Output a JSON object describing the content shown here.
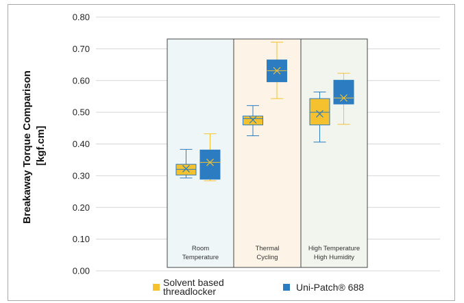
{
  "chart_data": {
    "type": "box",
    "ylabel": [
      "Breakaway Torque Comparison",
      "[kgf.cm]"
    ],
    "ylim": [
      0,
      0.8
    ],
    "ytick_labels": [
      "0.00",
      "0.10",
      "0.20",
      "0.30",
      "0.40",
      "0.50",
      "0.60",
      "0.70",
      "0.80"
    ],
    "yticks": [
      0,
      0.1,
      0.2,
      0.3,
      0.4,
      0.5,
      0.6,
      0.7,
      0.8
    ],
    "categories": [
      {
        "lines": [
          "Room",
          "Temperature"
        ],
        "bg": "#eef6f8"
      },
      {
        "lines": [
          "Thermal",
          "Cycling"
        ],
        "bg": "#fdf3e7"
      },
      {
        "lines": [
          "High Temperature",
          "High Humidity"
        ],
        "bg": "#f1f5ee"
      }
    ],
    "series": [
      {
        "name_lines": [
          "Solvent based",
          "threadlocker"
        ],
        "color": "#f5c12e",
        "stroke": "#f5c12e",
        "boxes": [
          {
            "min": 0.293,
            "q1": 0.302,
            "median": 0.32,
            "q3": 0.336,
            "max": 0.383,
            "mean": 0.322
          },
          {
            "min": 0.426,
            "q1": 0.46,
            "median": 0.48,
            "q3": 0.488,
            "max": 0.521,
            "mean": 0.476
          },
          {
            "min": 0.406,
            "q1": 0.46,
            "median": 0.5,
            "q3": 0.543,
            "max": 0.564,
            "mean": 0.495
          }
        ]
      },
      {
        "name_lines": [
          "Uni-Patch® 688"
        ],
        "color": "#2b7cc0",
        "stroke": "#f5c12e",
        "boxes": [
          {
            "min": 0.284,
            "q1": 0.289,
            "median": 0.342,
            "q3": 0.381,
            "max": 0.432,
            "mean": 0.342
          },
          {
            "min": 0.543,
            "q1": 0.596,
            "median": 0.631,
            "q3": 0.665,
            "max": 0.721,
            "mean": 0.631
          },
          {
            "min": 0.462,
            "q1": 0.526,
            "median": 0.545,
            "q3": 0.601,
            "max": 0.623,
            "mean": 0.545
          }
        ]
      }
    ],
    "legend_position": "bottom"
  }
}
